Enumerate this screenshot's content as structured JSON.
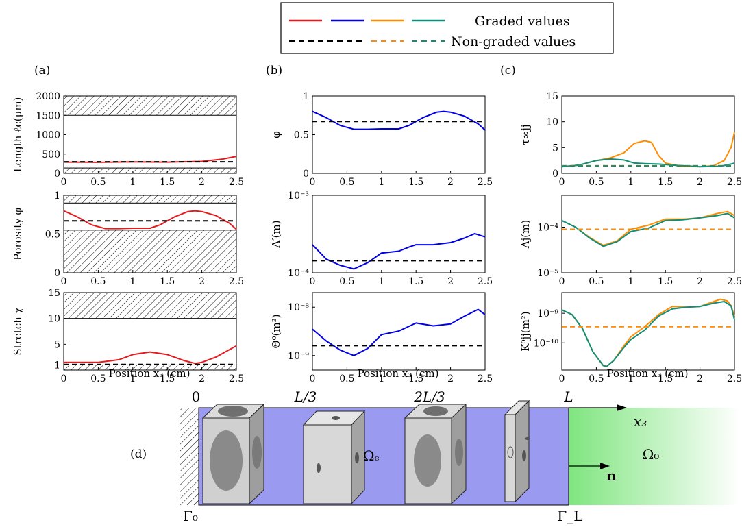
{
  "legend": {
    "graded": "Graded values",
    "nongraded": "Non-graded values"
  },
  "colors": {
    "red": "#e41a1c",
    "blue": "#0000e6",
    "orange": "#ff8c00",
    "teal": "#0f8f7a",
    "black": "#000000",
    "hatch": "#000000",
    "tube": "#9a9af0",
    "fluid": "#7fe57f"
  },
  "panels": {
    "a": "(a)",
    "b": "(b)",
    "c": "(c)",
    "d": "(d)"
  },
  "xlabel": "Position x₃ (cm)",
  "chart_data": [
    {
      "id": "length",
      "type": "line",
      "ylabel": "Length ℓc(μm)",
      "ylim": [
        0,
        2000
      ],
      "yticks": [
        "0",
        "500",
        "1000",
        "1500",
        "2000"
      ],
      "xlim": [
        0,
        2.5
      ],
      "xticks": [
        "0",
        "0.5",
        "1",
        "1.5",
        "2",
        "2.5"
      ],
      "log": false,
      "hatch": [
        [
          0,
          140
        ],
        [
          1500,
          2000
        ]
      ],
      "series": [
        {
          "color": "red",
          "dash": false,
          "x": [
            0,
            0.5,
            1,
            1.5,
            2,
            2.3,
            2.5
          ],
          "y": [
            290,
            285,
            295,
            290,
            310,
            370,
            440
          ]
        },
        {
          "color": "black",
          "dash": true,
          "x": [
            0,
            2.5
          ],
          "y": [
            300,
            300
          ]
        }
      ]
    },
    {
      "id": "porosity",
      "type": "line",
      "ylabel": "Porosity φ",
      "ylim": [
        0,
        1
      ],
      "yticks": [
        "0",
        "0.5",
        "1"
      ],
      "xlim": [
        0,
        2.5
      ],
      "xticks": [
        "0",
        "0.5",
        "1",
        "1.5",
        "2",
        "2.5"
      ],
      "log": false,
      "hatch": [
        [
          0,
          0.55
        ],
        [
          0.9,
          1
        ]
      ],
      "series": [
        {
          "color": "red",
          "dash": false,
          "x": [
            0,
            0.2,
            0.4,
            0.6,
            0.8,
            1.0,
            1.25,
            1.4,
            1.6,
            1.8,
            1.9,
            2.0,
            2.2,
            2.4,
            2.5
          ],
          "y": [
            0.8,
            0.72,
            0.62,
            0.57,
            0.57,
            0.575,
            0.575,
            0.62,
            0.72,
            0.79,
            0.8,
            0.79,
            0.74,
            0.64,
            0.56
          ]
        },
        {
          "color": "black",
          "dash": true,
          "x": [
            0,
            2.5
          ],
          "y": [
            0.67,
            0.67
          ]
        }
      ]
    },
    {
      "id": "stretch",
      "type": "line",
      "ylabel": "Stretch χ",
      "ylim": [
        0,
        15
      ],
      "yticks": [
        "1",
        "5",
        "10",
        "15"
      ],
      "ytickvals": [
        1,
        5,
        10,
        15
      ],
      "xlim": [
        0,
        2.5
      ],
      "xticks": [
        "0",
        "0.5",
        "1",
        "1.5",
        "2",
        "2.5"
      ],
      "log": false,
      "hatch": [
        [
          0,
          1
        ],
        [
          10,
          15
        ]
      ],
      "series": [
        {
          "color": "red",
          "dash": false,
          "x": [
            0,
            0.5,
            0.8,
            1.0,
            1.25,
            1.5,
            1.75,
            1.9,
            2.0,
            2.2,
            2.5
          ],
          "y": [
            1.5,
            1.5,
            2.0,
            3.0,
            3.5,
            3.0,
            1.8,
            1.3,
            1.5,
            2.5,
            4.7
          ]
        },
        {
          "color": "black",
          "dash": true,
          "x": [
            0,
            2.5
          ],
          "y": [
            1.1,
            1.1
          ]
        }
      ]
    },
    {
      "id": "phi",
      "type": "line",
      "ylabel": "φ",
      "ylim": [
        0,
        1
      ],
      "yticks": [
        "0",
        "0.5",
        "1"
      ],
      "xlim": [
        0,
        2.5
      ],
      "xticks": [
        "0",
        "0.5",
        "1",
        "1.5",
        "2",
        "2.5"
      ],
      "log": false,
      "series": [
        {
          "color": "blue",
          "dash": false,
          "x": [
            0,
            0.2,
            0.4,
            0.6,
            0.8,
            1.0,
            1.25,
            1.4,
            1.6,
            1.8,
            1.9,
            2.0,
            2.2,
            2.4,
            2.5
          ],
          "y": [
            0.8,
            0.72,
            0.62,
            0.57,
            0.57,
            0.575,
            0.575,
            0.62,
            0.72,
            0.79,
            0.8,
            0.79,
            0.74,
            0.64,
            0.56
          ]
        },
        {
          "color": "black",
          "dash": true,
          "x": [
            0,
            2.5
          ],
          "y": [
            0.67,
            0.67
          ]
        }
      ]
    },
    {
      "id": "lambda_prime",
      "type": "line",
      "ylabel": "Λ′(m)",
      "ylim": [
        0.0001,
        0.001
      ],
      "yticks": [
        "10⁻⁴",
        "10⁻³"
      ],
      "ytickvals": [
        0.0001,
        0.001
      ],
      "xlim": [
        0,
        2.5
      ],
      "xticks": [
        "0",
        "0.5",
        "1",
        "1.5",
        "2",
        "2.5"
      ],
      "log": true,
      "series": [
        {
          "color": "blue",
          "dash": false,
          "x": [
            0,
            0.2,
            0.4,
            0.6,
            0.8,
            1.0,
            1.25,
            1.4,
            1.5,
            1.75,
            2.0,
            2.2,
            2.35,
            2.5
          ],
          "y": [
            0.00023,
            0.00015,
            0.000125,
            0.000112,
            0.000135,
            0.00018,
            0.00019,
            0.000215,
            0.00023,
            0.00023,
            0.000245,
            0.00028,
            0.00032,
            0.00029
          ]
        },
        {
          "color": "black",
          "dash": true,
          "x": [
            0,
            2.5
          ],
          "y": [
            0.000143,
            0.000143
          ]
        }
      ]
    },
    {
      "id": "theta0",
      "type": "line",
      "ylabel": "Θ⁰(m²)",
      "ylim": [
        5e-10,
        2e-08
      ],
      "yticks": [
        "10⁻⁹",
        "10⁻⁸"
      ],
      "ytickvals": [
        1e-09,
        1e-08
      ],
      "xlim": [
        0,
        2.5
      ],
      "xticks": [
        "0",
        "0.5",
        "1",
        "1.5",
        "2",
        "2.5"
      ],
      "log": true,
      "series": [
        {
          "color": "blue",
          "dash": false,
          "x": [
            0,
            0.2,
            0.4,
            0.6,
            0.8,
            1.0,
            1.25,
            1.5,
            1.75,
            2.0,
            2.2,
            2.4,
            2.5
          ],
          "y": [
            3.5e-09,
            2e-09,
            1.3e-09,
            1e-09,
            1.4e-09,
            2.7e-09,
            3.2e-09,
            4.7e-09,
            4.1e-09,
            4.5e-09,
            6.5e-09,
            9e-09,
            7e-09
          ]
        },
        {
          "color": "black",
          "dash": true,
          "x": [
            0,
            2.5
          ],
          "y": [
            1.6e-09,
            1.6e-09
          ]
        }
      ]
    },
    {
      "id": "tau_inf",
      "type": "line",
      "ylabel": "τ∞jj",
      "ylim": [
        0,
        15
      ],
      "yticks": [
        "0",
        "5",
        "10",
        "15"
      ],
      "xlim": [
        0,
        2.5
      ],
      "xticks": [
        "0",
        "0.5",
        "1",
        "1.5",
        "2",
        "2.5"
      ],
      "log": false,
      "series": [
        {
          "color": "orange",
          "dash": false,
          "x": [
            0,
            0.25,
            0.5,
            0.7,
            0.9,
            1.05,
            1.2,
            1.3,
            1.4,
            1.5,
            1.7,
            2.0,
            2.2,
            2.35,
            2.45,
            2.5
          ],
          "y": [
            1.3,
            1.6,
            2.5,
            3.0,
            4.0,
            5.8,
            6.3,
            6.0,
            3.5,
            2.0,
            1.4,
            1.3,
            1.5,
            2.5,
            5.0,
            8.0
          ]
        },
        {
          "color": "teal",
          "dash": false,
          "x": [
            0,
            0.25,
            0.5,
            0.7,
            0.9,
            1.05,
            1.2,
            1.4,
            1.6,
            2.0,
            2.3,
            2.45,
            2.5
          ],
          "y": [
            1.3,
            1.6,
            2.5,
            2.8,
            2.6,
            2.0,
            1.9,
            1.8,
            1.6,
            1.3,
            1.4,
            1.8,
            2.0
          ]
        },
        {
          "color": "orange",
          "dash": true,
          "x": [
            0,
            2.5
          ],
          "y": [
            1.5,
            1.5
          ]
        },
        {
          "color": "teal",
          "dash": true,
          "x": [
            0,
            2.5
          ],
          "y": [
            1.45,
            1.45
          ]
        }
      ]
    },
    {
      "id": "lambda_j",
      "type": "line",
      "ylabel": "Λj(m)",
      "ylim": [
        1e-05,
        0.0005
      ],
      "yticks": [
        "10⁻⁵",
        "10⁻⁴"
      ],
      "ytickvals": [
        1e-05,
        0.0001
      ],
      "xlim": [
        0,
        2.5
      ],
      "xticks": [
        "0",
        "0.5",
        "1",
        "1.5",
        "2",
        "2.5"
      ],
      "log": true,
      "series": [
        {
          "color": "orange",
          "dash": false,
          "x": [
            0,
            0.2,
            0.4,
            0.6,
            0.8,
            1.0,
            1.25,
            1.5,
            1.75,
            2.0,
            2.25,
            2.4,
            2.5
          ],
          "y": [
            0.00014,
            0.0001,
            6e-05,
            4e-05,
            5e-05,
            9e-05,
            0.00011,
            0.00015,
            0.00015,
            0.00016,
            0.0002,
            0.00022,
            0.00018
          ]
        },
        {
          "color": "teal",
          "dash": false,
          "x": [
            0,
            0.2,
            0.4,
            0.6,
            0.8,
            1.0,
            1.25,
            1.5,
            1.75,
            2.0,
            2.25,
            2.4,
            2.5
          ],
          "y": [
            0.00014,
            0.0001,
            5.8e-05,
            3.8e-05,
            4.8e-05,
            8e-05,
            9.5e-05,
            0.00014,
            0.000145,
            0.00016,
            0.00018,
            0.0002,
            0.00016
          ]
        },
        {
          "color": "orange",
          "dash": true,
          "x": [
            0,
            2.5
          ],
          "y": [
            9e-05,
            9e-05
          ]
        }
      ]
    },
    {
      "id": "k0",
      "type": "line",
      "ylabel": "K⁰jj(m²)",
      "ylim": [
        1.2e-11,
        5e-09
      ],
      "yticks": [
        "10⁻¹⁰",
        "10⁻⁹"
      ],
      "ytickvals": [
        1e-10,
        1e-09
      ],
      "xlim": [
        0,
        2.5
      ],
      "xticks": [
        "0",
        "0.5",
        "1",
        "1.5",
        "2",
        "2.5"
      ],
      "log": true,
      "series": [
        {
          "color": "orange",
          "dash": false,
          "x": [
            0,
            0.15,
            0.3,
            0.45,
            0.6,
            0.65,
            0.75,
            0.9,
            1.0,
            1.2,
            1.4,
            1.6,
            1.8,
            2.0,
            2.2,
            2.3,
            2.4,
            2.45,
            2.5
          ],
          "y": [
            1.3e-09,
            9e-10,
            3e-10,
            5e-11,
            1.7e-11,
            1.6e-11,
            2.5e-11,
            8e-11,
            1.6e-10,
            3.5e-10,
            9e-10,
            1.7e-09,
            1.6e-09,
            1.7e-09,
            2.5e-09,
            3e-09,
            2.6e-09,
            1.8e-09,
            8e-10
          ]
        },
        {
          "color": "teal",
          "dash": false,
          "x": [
            0,
            0.15,
            0.3,
            0.45,
            0.6,
            0.65,
            0.75,
            0.9,
            1.0,
            1.2,
            1.4,
            1.6,
            1.8,
            2.0,
            2.2,
            2.35,
            2.45,
            2.5
          ],
          "y": [
            1.3e-09,
            9e-10,
            3e-10,
            5e-11,
            1.7e-11,
            1.6e-11,
            2.5e-11,
            7e-11,
            1.3e-10,
            2.7e-10,
            8e-10,
            1.4e-09,
            1.6e-09,
            1.7e-09,
            2.2e-09,
            2.5e-09,
            1.8e-09,
            6e-10
          ]
        },
        {
          "color": "orange",
          "dash": true,
          "x": [
            0,
            2.5
          ],
          "y": [
            3.5e-10,
            3.5e-10
          ]
        }
      ]
    }
  ],
  "diagram": {
    "labels": {
      "zero": "0",
      "l3": "L/3",
      "l23": "2L/3",
      "L": "L",
      "x3": "x₃",
      "omega_e": "Ωₑ",
      "omega_0": "Ω₀",
      "n": "n",
      "gamma_0": "Γ₀",
      "gamma_L": "Γ_L"
    }
  }
}
